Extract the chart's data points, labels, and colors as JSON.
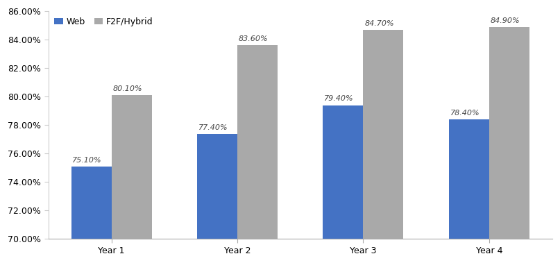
{
  "categories": [
    "Year 1",
    "Year 2",
    "Year 3",
    "Year 4"
  ],
  "web_values": [
    0.751,
    0.774,
    0.794,
    0.784
  ],
  "f2f_values": [
    0.801,
    0.836,
    0.847,
    0.849
  ],
  "web_labels": [
    "75.10%",
    "77.40%",
    "79.40%",
    "78.40%"
  ],
  "f2f_labels": [
    "80.10%",
    "83.60%",
    "84.70%",
    "84.90%"
  ],
  "web_color": "#4472C4",
  "f2f_color": "#A9A9A9",
  "legend_web": "Web",
  "legend_f2f": "F2F/Hybrid",
  "ylim_min": 0.7,
  "ylim_max": 0.86,
  "yticks": [
    0.7,
    0.72,
    0.74,
    0.76,
    0.78,
    0.8,
    0.82,
    0.84,
    0.86
  ],
  "bar_width": 0.32,
  "label_fontsize": 8.0,
  "tick_fontsize": 9,
  "legend_fontsize": 9,
  "background_color": "#FFFFFF"
}
